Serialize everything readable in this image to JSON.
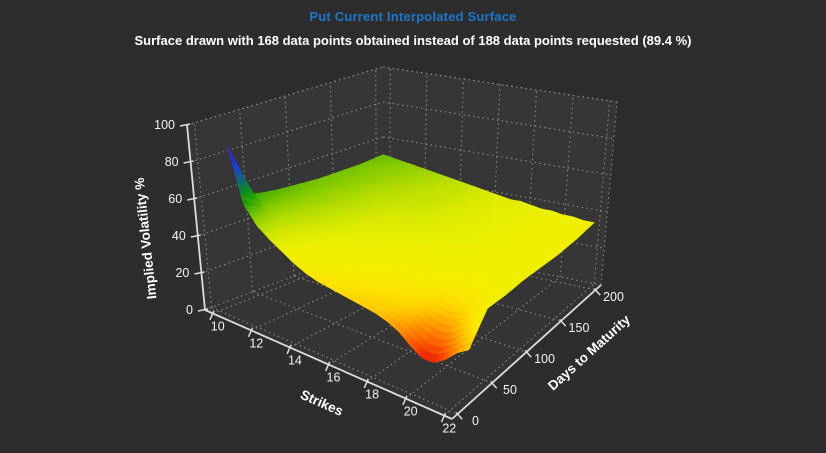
{
  "window": {
    "background_color": "#2d2d2d"
  },
  "header": {
    "title": "Put Current Interpolated Surface",
    "title_color": "#1b76cc",
    "subtitle": "Surface drawn with 168 data points obtained instead of 188 data points requested (89.4 %)",
    "subtitle_color": "#ffffff"
  },
  "chart_data": {
    "type": "surface",
    "title": "Put Current Interpolated Surface",
    "points_obtained": 168,
    "points_requested": 188,
    "obtained_pct": 89.4,
    "x_axis": {
      "label": "Strikes",
      "ticks": [
        10,
        12,
        14,
        16,
        18,
        20,
        22
      ],
      "range": [
        9.6,
        22.4
      ]
    },
    "y_axis": {
      "label": "Days to Maturity",
      "ticks": [
        0,
        50,
        100,
        150,
        200
      ],
      "range": [
        -8,
        208
      ]
    },
    "z_axis": {
      "label": "Implied Volatility %",
      "ticks": [
        0,
        20,
        40,
        60,
        80,
        100
      ],
      "range": [
        0,
        100
      ]
    },
    "grid": {
      "style": "dotted",
      "color": "#9a9a9a"
    },
    "wall_color": "#363636",
    "floor_color": "#343434",
    "axis_color": "#dcdcdc",
    "tick_label_color": "#f2f2f2",
    "axis_title_color": "#ffffff",
    "surface": {
      "strikes": [
        10,
        10.6,
        11.2,
        11.8,
        12.4,
        13,
        13.6,
        14.2,
        14.8,
        15.4,
        16,
        16.6,
        17.2,
        17.8,
        18.4,
        19,
        19.6,
        20.2,
        20.8,
        21.4,
        22
      ],
      "maturities": [
        25,
        50,
        75,
        100,
        125,
        150,
        175,
        200
      ],
      "implied_volatility": [
        [
          85,
          56,
          47,
          42,
          38,
          34,
          31,
          29,
          28,
          27,
          26,
          25,
          24,
          22,
          19,
          14,
          10,
          10,
          14,
          20,
          24
        ],
        [
          55,
          50,
          46,
          43,
          40,
          38,
          36,
          34,
          33,
          32,
          31,
          30,
          29,
          28,
          26,
          23,
          21,
          22,
          26,
          31,
          38
        ],
        [
          53,
          50,
          47,
          45,
          43,
          41,
          39,
          38,
          37,
          36,
          35,
          34,
          33,
          33,
          32,
          31,
          31,
          31,
          32,
          34,
          37
        ],
        [
          52,
          50,
          48,
          46,
          44,
          43,
          41,
          40,
          39,
          39,
          38,
          38,
          37,
          37,
          36,
          36,
          35,
          35,
          35,
          36,
          37
        ],
        [
          51,
          50,
          48,
          47,
          45,
          44,
          43,
          42,
          42,
          41,
          40,
          40,
          39,
          39,
          38,
          37,
          37,
          36,
          36,
          35,
          36
        ],
        [
          51,
          50,
          49,
          47,
          46,
          45,
          44,
          44,
          43,
          42,
          41,
          40,
          40,
          39,
          38,
          38,
          37,
          36,
          36,
          35,
          35
        ],
        [
          51,
          50,
          49,
          48,
          47,
          46,
          45,
          44,
          44,
          43,
          42,
          41,
          40,
          39,
          39,
          38,
          37,
          37,
          36,
          36,
          35
        ],
        [
          52,
          51,
          50,
          49,
          48,
          47,
          46,
          45,
          44,
          43,
          42,
          41,
          40,
          40,
          39,
          38,
          38,
          37,
          37,
          36,
          36
        ]
      ]
    },
    "colormap": [
      [
        4,
        "#c00000"
      ],
      [
        9,
        "#e61000"
      ],
      [
        13,
        "#f54400"
      ],
      [
        17,
        "#fc7400"
      ],
      [
        21,
        "#ffa000"
      ],
      [
        25,
        "#ffcc00"
      ],
      [
        29,
        "#fbe400"
      ],
      [
        33,
        "#f5ee00"
      ],
      [
        38,
        "#ecf000"
      ],
      [
        42,
        "#d8ea00"
      ],
      [
        46,
        "#b4dc00"
      ],
      [
        50,
        "#84ca00"
      ],
      [
        54,
        "#48b000"
      ],
      [
        58,
        "#1c9c04"
      ],
      [
        62,
        "#0d8a28"
      ],
      [
        66,
        "#0c705e"
      ],
      [
        70,
        "#1258a8"
      ],
      [
        74,
        "#1c40d8"
      ],
      [
        78,
        "#2c2ce0"
      ],
      [
        82,
        "#3c1ec4"
      ],
      [
        86,
        "#50169c"
      ],
      [
        92,
        "#481070"
      ]
    ]
  }
}
